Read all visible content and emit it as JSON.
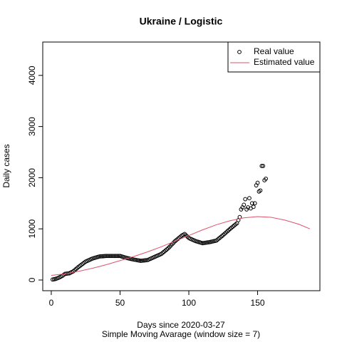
{
  "chart_data": {
    "type": "scatter",
    "title": "Ukraine / Logistic",
    "x_label": "Days since 2020-03-27",
    "subtitle": "Simple Moving Avarage (window size = 7)",
    "y_label": "Daily cases",
    "xlim": [
      -6.2,
      195.3
    ],
    "ylim": [
      -209,
      4652
    ],
    "xticks": [
      0,
      50,
      100,
      150
    ],
    "yticks": [
      0,
      1000,
      2000,
      3000,
      4000
    ],
    "legend": "topright",
    "series": [
      {
        "name": "Real value",
        "type": "scatter",
        "color": "#000000",
        "x": [
          1,
          2,
          3,
          4,
          5,
          6,
          7,
          8,
          9,
          10,
          11,
          12,
          13,
          14,
          15,
          16,
          17,
          18,
          19,
          20,
          21,
          22,
          23,
          24,
          25,
          26,
          27,
          28,
          29,
          30,
          31,
          32,
          33,
          34,
          35,
          36,
          37,
          38,
          39,
          40,
          41,
          42,
          43,
          44,
          45,
          46,
          47,
          48,
          49,
          50,
          51,
          52,
          53,
          54,
          55,
          56,
          57,
          58,
          59,
          60,
          61,
          62,
          63,
          64,
          65,
          66,
          67,
          68,
          69,
          70,
          71,
          72,
          73,
          74,
          75,
          76,
          77,
          78,
          79,
          80,
          81,
          82,
          83,
          84,
          85,
          86,
          87,
          88,
          89,
          90,
          91,
          92,
          93,
          94,
          95,
          96,
          97,
          98,
          99,
          100,
          101,
          102,
          103,
          104,
          105,
          106,
          107,
          108,
          109,
          110,
          111,
          112,
          113,
          114,
          115,
          116,
          117,
          118,
          119,
          120,
          121,
          122,
          123,
          124,
          125,
          126,
          127,
          128,
          129,
          130,
          131,
          132,
          133,
          134,
          135,
          136,
          137,
          138,
          139,
          140,
          141,
          142,
          143,
          144,
          145,
          146,
          147,
          148,
          149,
          150,
          151,
          152,
          153,
          154,
          155,
          156
        ],
        "values": [
          10,
          15,
          20,
          30,
          40,
          53,
          67,
          80,
          100,
          120,
          123,
          127,
          130,
          143,
          157,
          170,
          193,
          215,
          238,
          260,
          280,
          300,
          320,
          340,
          360,
          372,
          384,
          396,
          408,
          420,
          428,
          436,
          444,
          452,
          460,
          462,
          464,
          466,
          468,
          470,
          470,
          470,
          470,
          470,
          470,
          470,
          470,
          470,
          470,
          470,
          462,
          454,
          446,
          438,
          430,
          424,
          418,
          412,
          406,
          400,
          395,
          390,
          385,
          380,
          375,
          378,
          381,
          384,
          387,
          390,
          402,
          414,
          426,
          438,
          450,
          462,
          474,
          486,
          498,
          510,
          532,
          554,
          576,
          598,
          620,
          648,
          676,
          704,
          732,
          760,
          782,
          804,
          826,
          848,
          870,
          885,
          900,
          873,
          847,
          820,
          808,
          796,
          784,
          772,
          760,
          752,
          744,
          736,
          728,
          720,
          724,
          728,
          732,
          736,
          740,
          746,
          752,
          758,
          764,
          770,
          792,
          814,
          836,
          858,
          880,
          904,
          928,
          952,
          976,
          1000,
          1022,
          1044,
          1066,
          1088,
          1110,
          1170,
          1230,
          1380,
          1420,
          1470,
          1580,
          1380,
          1420,
          1600,
          1400,
          1500,
          1430,
          1500,
          1850,
          1900,
          1730,
          1750,
          2230,
          2230,
          1950,
          1980
        ]
      },
      {
        "name": "Estimated value",
        "type": "line",
        "color": "#df536b",
        "x": [
          0,
          10,
          20,
          30,
          40,
          50,
          60,
          70,
          80,
          90,
          100,
          110,
          120,
          130,
          140,
          150,
          160,
          170,
          180,
          188
        ],
        "values": [
          90,
          120,
          170,
          230,
          300,
          380,
          460,
          550,
          650,
          760,
          870,
          980,
          1080,
          1160,
          1215,
          1240,
          1225,
          1170,
          1090,
          1000
        ]
      }
    ]
  }
}
